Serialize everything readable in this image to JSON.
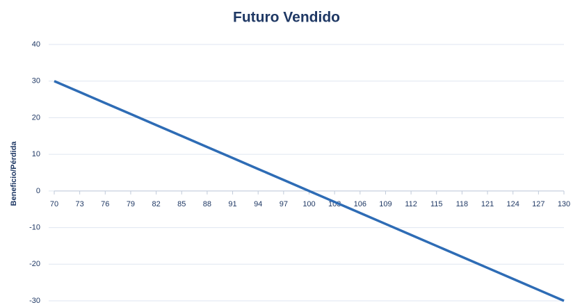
{
  "chart_data": {
    "type": "line",
    "title": "Futuro Vendido",
    "y_label": "Beneficio/Pérdida",
    "x": [
      70,
      73,
      76,
      79,
      82,
      85,
      88,
      91,
      94,
      97,
      100,
      103,
      106,
      109,
      112,
      115,
      118,
      121,
      124,
      127,
      130
    ],
    "series": [
      {
        "name": "Futuro Vendido",
        "color": "#2e6cb5",
        "values": [
          30,
          27,
          24,
          21,
          18,
          15,
          12,
          9,
          6,
          3,
          0,
          -3,
          -6,
          -9,
          -12,
          -15,
          -18,
          -21,
          -24,
          -27,
          -30
        ]
      }
    ],
    "xlim": [
      70,
      130
    ],
    "xticks": [
      70,
      73,
      76,
      79,
      82,
      85,
      88,
      91,
      94,
      97,
      100,
      103,
      106,
      109,
      112,
      115,
      118,
      121,
      124,
      127,
      130
    ],
    "ylim": [
      -30,
      40
    ],
    "yticks": [
      -30,
      -20,
      -10,
      0,
      10,
      20,
      30,
      40
    ],
    "grid": true
  }
}
